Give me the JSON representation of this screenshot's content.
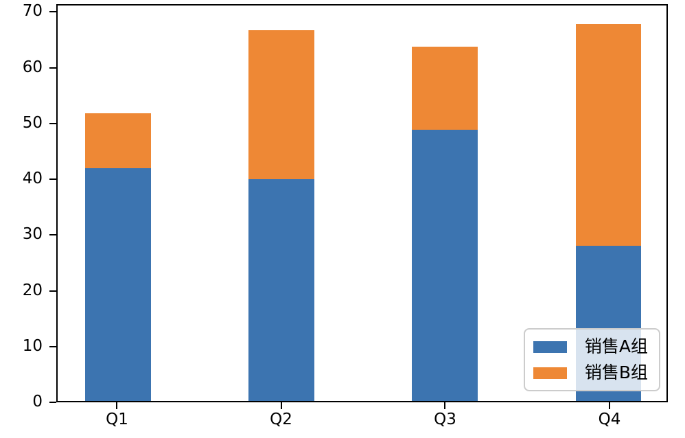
{
  "figure": {
    "background": "#ffffff",
    "axis_color": "#000000"
  },
  "chart_data": {
    "type": "bar",
    "stacked": true,
    "title": "",
    "xlabel": "",
    "ylabel": "",
    "categories": [
      "Q1",
      "Q2",
      "Q3",
      "Q4"
    ],
    "series": [
      {
        "name": "销售A组",
        "color": "#3c74b0",
        "values": [
          42,
          40,
          49,
          28
        ]
      },
      {
        "name": "销售B组",
        "color": "#ee8835",
        "values": [
          10,
          27,
          15,
          40
        ]
      }
    ],
    "stack_totals": [
      52,
      67,
      64,
      68
    ],
    "yticks": [
      0,
      10,
      20,
      30,
      40,
      50,
      60,
      70
    ],
    "ylim": [
      0,
      71.4
    ],
    "grid": false,
    "legend": {
      "position": "lower right",
      "background": "rgba(255,255,255,0.8)",
      "border_color": "#cccccc"
    }
  }
}
